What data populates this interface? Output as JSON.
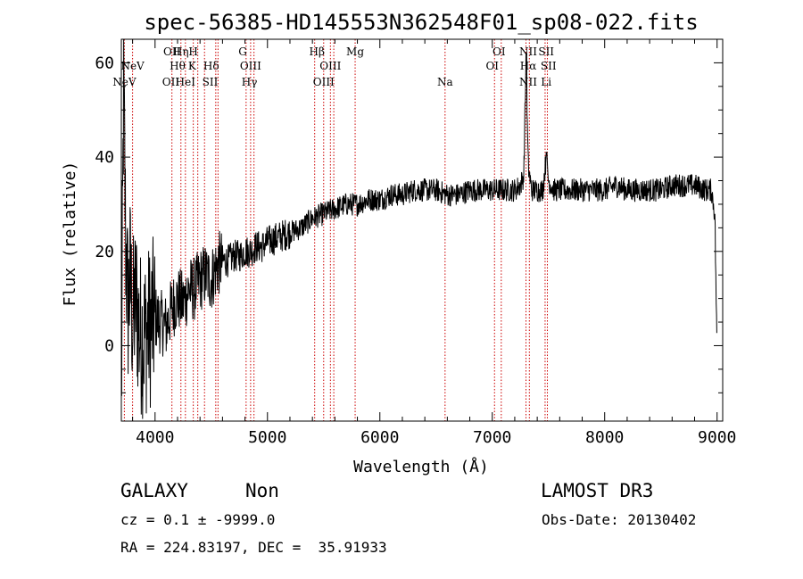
{
  "chart_data": {
    "type": "line",
    "title": "spec-56385-HD145553N362548F01_sp08-022.fits",
    "xlabel": "Wavelength (Å)",
    "ylabel": "Flux (relative)",
    "xlim": [
      3700,
      9050
    ],
    "ylim": [
      -16,
      65
    ],
    "xticks": [
      4000,
      5000,
      6000,
      7000,
      8000,
      9000
    ],
    "yticks": [
      0,
      20,
      40,
      60
    ],
    "line_color": "#000000",
    "marker_color": "#cc0000",
    "spectrum_anchors": {
      "x": [
        3700,
        3720,
        3740,
        3760,
        3780,
        3800,
        3830,
        3860,
        3900,
        3950,
        4000,
        4050,
        4100,
        4150,
        4200,
        4250,
        4300,
        4350,
        4400,
        4450,
        4500,
        4550,
        4600,
        4650,
        4700,
        4750,
        4800,
        4850,
        4900,
        4950,
        5000,
        5100,
        5200,
        5300,
        5400,
        5500,
        5600,
        5700,
        5800,
        5900,
        6000,
        6100,
        6200,
        6300,
        6400,
        6500,
        6600,
        6700,
        6800,
        6900,
        7000,
        7100,
        7200,
        7250,
        7280,
        7300,
        7320,
        7350,
        7400,
        7450,
        7480,
        7500,
        7550,
        7600,
        7700,
        7800,
        7900,
        8000,
        8100,
        8200,
        8300,
        8400,
        8500,
        8600,
        8700,
        8800,
        8900,
        8950,
        8980,
        9000
      ],
      "y": [
        -14,
        55,
        20,
        8,
        15,
        5,
        10,
        3,
        2,
        4,
        6,
        5,
        4,
        8,
        10,
        9,
        12,
        12,
        14,
        15,
        14,
        17,
        18,
        18,
        19,
        19,
        20,
        20,
        21,
        21,
        22,
        23,
        24,
        25,
        27,
        28,
        29,
        30,
        30,
        31,
        31,
        32,
        32,
        33,
        33,
        33,
        32,
        32,
        33,
        33,
        33,
        33,
        33,
        34,
        36,
        60,
        38,
        33,
        33,
        33,
        40,
        35,
        33,
        33,
        33,
        33,
        33,
        33,
        34,
        33,
        33,
        33,
        33,
        34,
        34,
        34,
        33,
        33,
        28,
        -2
      ]
    },
    "lines": [
      {
        "label": "NeV",
        "wl": 3727,
        "row": 3
      },
      {
        "label": "NeV",
        "wl": 3800,
        "row": 2
      },
      {
        "label": "OII",
        "wl": 3727,
        "row": 3,
        "hidden": true
      },
      {
        "label": "OII",
        "wl": 4150,
        "row": 1
      },
      {
        "label": "Hη",
        "wl": 4230,
        "row": 1
      },
      {
        "label": "H",
        "wl": 4340,
        "row": 1
      },
      {
        "label": "Hθ",
        "wl": 4200,
        "row": 2
      },
      {
        "label": "K",
        "wl": 4330,
        "row": 2
      },
      {
        "label": "Hδ",
        "wl": 4500,
        "row": 2
      },
      {
        "label": "OII",
        "wl": 4140,
        "row": 3
      },
      {
        "label": "HeI",
        "wl": 4270,
        "row": 3
      },
      {
        "label": "SII",
        "wl": 4490,
        "row": 3
      },
      {
        "label": "G",
        "wl": 4780,
        "row": 1
      },
      {
        "label": "OIII",
        "wl": 4850,
        "row": 2
      },
      {
        "label": "Hγ",
        "wl": 4840,
        "row": 3
      },
      {
        "label": "Hβ",
        "wl": 5440,
        "row": 1
      },
      {
        "label": "Mg",
        "wl": 5780,
        "row": 1
      },
      {
        "label": "OIII",
        "wl": 5560,
        "row": 2
      },
      {
        "label": "OIII",
        "wl": 5500,
        "row": 3
      },
      {
        "label": "Na",
        "wl": 6580,
        "row": 3
      },
      {
        "label": "OI",
        "wl": 7060,
        "row": 1
      },
      {
        "label": "OI",
        "wl": 7000,
        "row": 2
      },
      {
        "label": "NII",
        "wl": 7320,
        "row": 1
      },
      {
        "label": "SII",
        "wl": 7480,
        "row": 1
      },
      {
        "label": "Hα",
        "wl": 7320,
        "row": 2
      },
      {
        "label": "SII",
        "wl": 7500,
        "row": 2
      },
      {
        "label": "NII",
        "wl": 7320,
        "row": 3
      },
      {
        "label": "Li",
        "wl": 7480,
        "row": 3
      }
    ],
    "marker_wl": [
      3727,
      3800,
      4150,
      4230,
      4270,
      4340,
      4380,
      4440,
      4540,
      4560,
      4810,
      4850,
      4880,
      5420,
      5500,
      5560,
      5590,
      5780,
      6580,
      7020,
      7080,
      7300,
      7330,
      7470,
      7490
    ]
  },
  "info": {
    "class_label": "GALAXY",
    "subclass": "Non",
    "survey": "LAMOST DR3",
    "cz_line": "cz = 0.1 ± -9999.0",
    "obs_date": "Obs-Date: 20130402",
    "radec": "RA = 224.83197, DEC =  35.91933"
  }
}
